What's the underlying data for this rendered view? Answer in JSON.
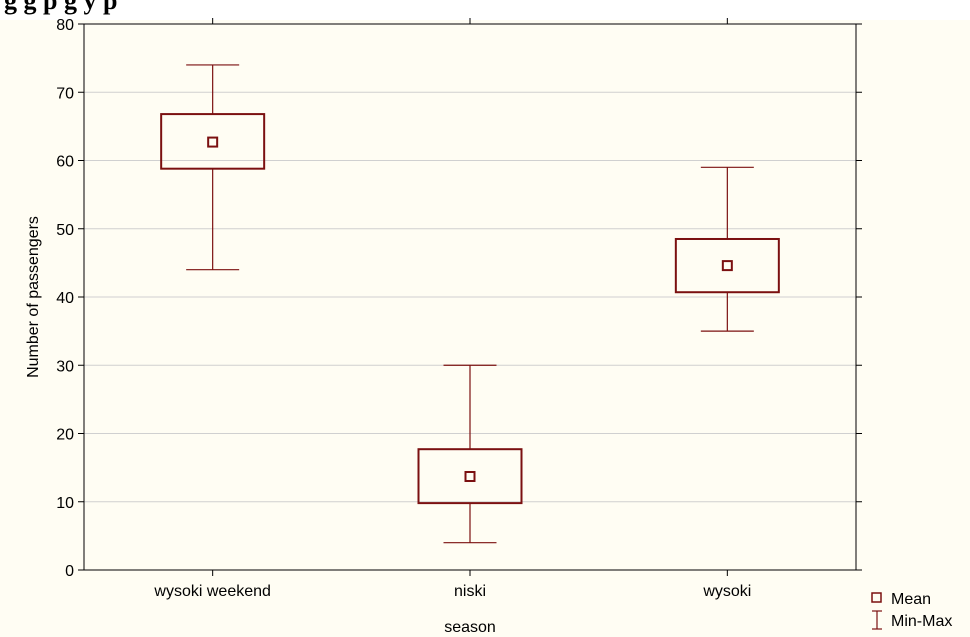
{
  "caption_fragment": "g                    g p          g                y                                p",
  "chart_data": {
    "type": "boxplot",
    "xlabel": "season",
    "ylabel": "Number of passengers",
    "ylim": [
      0,
      80
    ],
    "yticks": [
      0,
      10,
      20,
      30,
      40,
      50,
      60,
      70,
      80
    ],
    "grid": true,
    "legend_placement": "bottom-right",
    "legend": [
      {
        "symbol": "square",
        "label": "Mean"
      },
      {
        "symbol": "whisker",
        "label": "Min-Max"
      }
    ],
    "categories": [
      "wysoki weekend",
      "niski",
      "wysoki"
    ],
    "boxes": [
      {
        "category": "wysoki weekend",
        "min": 44,
        "q_low": 58.8,
        "mean": 62.7,
        "q_high": 66.8,
        "max": 74
      },
      {
        "category": "niski",
        "min": 4,
        "q_low": 9.8,
        "mean": 13.7,
        "q_high": 17.7,
        "max": 30
      },
      {
        "category": "wysoki",
        "min": 35,
        "q_low": 40.7,
        "mean": 44.6,
        "q_high": 48.5,
        "max": 59
      }
    ],
    "color": "#7b1010"
  }
}
